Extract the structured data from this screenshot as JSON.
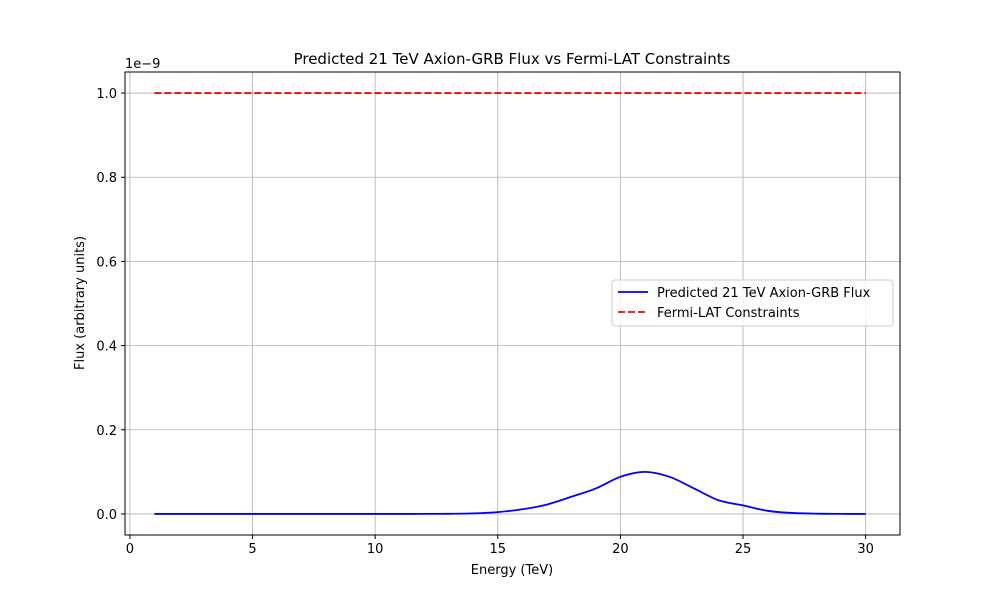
{
  "chart_data": {
    "type": "line",
    "title": "Predicted 21 TeV Axion-GRB Flux vs Fermi-LAT Constraints",
    "xlabel": "Energy (TeV)",
    "ylabel": "Flux (arbitrary units)",
    "y_offset_label": "1e−9",
    "xlim": [
      -0.2,
      31.4
    ],
    "ylim": [
      -0.05,
      1.05
    ],
    "y_scale_factor": 1e-09,
    "x_ticks": [
      0,
      5,
      10,
      15,
      20,
      25,
      30
    ],
    "x_tick_labels": [
      "0",
      "5",
      "10",
      "15",
      "20",
      "25",
      "30"
    ],
    "y_ticks": [
      0.0,
      0.2,
      0.4,
      0.6,
      0.8,
      1.0
    ],
    "y_tick_labels": [
      "0.0",
      "0.2",
      "0.4",
      "0.6",
      "0.8",
      "1.0"
    ],
    "grid": true,
    "legend_position": "center-right",
    "series": [
      {
        "name": "Predicted 21 TeV Axion-GRB Flux",
        "color": "#0000ff",
        "style": "solid",
        "x": [
          1,
          2,
          3,
          4,
          5,
          6,
          7,
          8,
          9,
          10,
          11,
          12,
          13,
          14,
          15,
          16,
          17,
          18,
          19,
          20,
          21,
          22,
          23,
          24,
          25,
          26,
          27,
          28,
          29,
          30
        ],
        "values": [
          0.0,
          0.0,
          0.0,
          0.0,
          0.0,
          0.0,
          0.0,
          0.0,
          0.0,
          0.0,
          0.0,
          0.0001,
          0.0004,
          0.0014,
          0.0044,
          0.0111,
          0.0223,
          0.0408,
          0.0606,
          0.0882,
          0.1,
          0.0882,
          0.0606,
          0.0325,
          0.0203,
          0.0075,
          0.0024,
          0.0006,
          0.0001,
          0.0
        ]
      },
      {
        "name": "Fermi-LAT Constraints",
        "color": "#ff0000",
        "style": "dashed",
        "x": [
          1,
          30
        ],
        "values": [
          1.0,
          1.0
        ]
      }
    ]
  }
}
